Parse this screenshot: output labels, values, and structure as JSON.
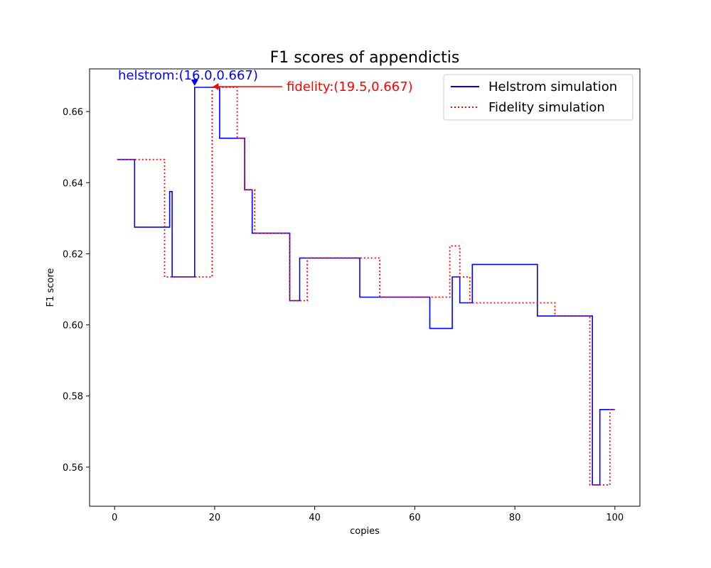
{
  "chart_data": {
    "type": "line",
    "title": "F1 scores of appendictis",
    "xlabel": "copies",
    "ylabel": "F1 score",
    "xlim": [
      -5,
      105
    ],
    "ylim": [
      0.549,
      0.672
    ],
    "x_ticks": [
      0,
      20,
      40,
      60,
      80,
      100
    ],
    "y_ticks": [
      0.56,
      0.58,
      0.6,
      0.62,
      0.64,
      0.66
    ],
    "x_tick_labels": [
      "0",
      "20",
      "40",
      "60",
      "80",
      "100"
    ],
    "y_tick_labels": [
      "0.56",
      "0.58",
      "0.60",
      "0.62",
      "0.64",
      "0.66"
    ],
    "grid": false,
    "legend_position": "top-right",
    "series": [
      {
        "name": "Helstrom simulation",
        "color": "#0000ff",
        "style": "solid",
        "step": true,
        "x": [
          0.5,
          4,
          11,
          11.5,
          16,
          21,
          26,
          27.5,
          35,
          37,
          49,
          63,
          67.5,
          69,
          71.5,
          84.5,
          95.5,
          97,
          100
        ],
        "y": [
          0.6465,
          0.6275,
          0.6375,
          0.6135,
          0.6668,
          0.6525,
          0.638,
          0.6258,
          0.6068,
          0.6188,
          0.6078,
          0.599,
          0.6135,
          0.6062,
          0.617,
          0.6025,
          0.555,
          0.5762,
          0.5762
        ]
      },
      {
        "name": "Fidelity simulation",
        "color": "#ff0000",
        "style": "dotted",
        "step": true,
        "x": [
          0.5,
          10,
          19.5,
          24.5,
          26,
          28,
          35,
          38.5,
          53,
          67,
          69,
          71,
          88,
          95,
          99,
          100
        ],
        "y": [
          0.6465,
          0.6135,
          0.6668,
          0.6525,
          0.638,
          0.6258,
          0.6068,
          0.6188,
          0.6078,
          0.6222,
          0.6135,
          0.6062,
          0.6025,
          0.555,
          0.5762,
          0.5762
        ]
      }
    ],
    "annotations": [
      {
        "text": "helstrom:(16.0,0.667)",
        "x": 16.0,
        "y": 0.667,
        "color": "#0000ff"
      },
      {
        "text": "fidelity:(19.5,0.667)",
        "x": 19.5,
        "y": 0.667,
        "color": "#ff0000"
      }
    ]
  }
}
